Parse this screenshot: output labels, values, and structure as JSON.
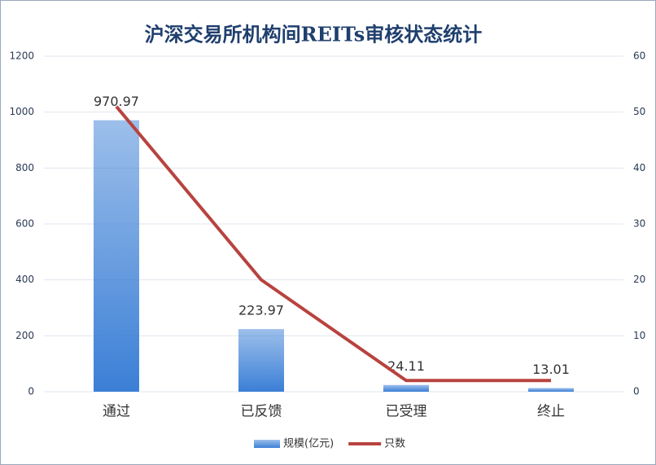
{
  "chart_data": {
    "type": "combo",
    "title": "沪深交易所机构间REITs审核状态统计",
    "categories": [
      "通过",
      "已反馈",
      "已受理",
      "终止"
    ],
    "series": [
      {
        "name": "规模(亿元)",
        "type": "bar",
        "color": "#3b7fd6",
        "values": [
          970.97,
          223.97,
          24.11,
          13.01
        ]
      },
      {
        "name": "只数",
        "type": "line",
        "axis": "y2",
        "color": "#b8433f",
        "values": [
          51,
          20,
          2,
          2
        ]
      }
    ],
    "ylim": [
      0,
      1200
    ],
    "yticks": [
      0,
      200,
      400,
      600,
      800,
      1000,
      1200
    ],
    "y2lim": [
      0,
      60
    ],
    "y2ticks": [
      0,
      10,
      20,
      30,
      40,
      50,
      60
    ],
    "grid": true,
    "legend": "bottom"
  }
}
